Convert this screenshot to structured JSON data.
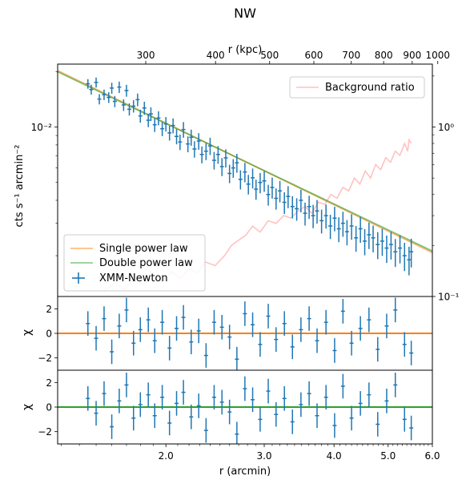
{
  "title": "NW",
  "chart_data": [
    {
      "type": "scatter",
      "panel": "profile",
      "ylabel": "cts s⁻¹ arcmin⁻²",
      "top_xlabel": "r (kpc)",
      "top_xtick_labels": [
        "300",
        "400",
        "500",
        "600",
        "700",
        "800",
        "900",
        "1000"
      ],
      "top_xticks_kpc": [
        300,
        400,
        500,
        600,
        700,
        800,
        900,
        1000
      ],
      "xlim_arcmin": [
        1.28,
        6.0
      ],
      "ylim_log": [
        0.0012,
        0.022
      ],
      "yscale": "log",
      "left_ytick_labels": [
        "10⁻²"
      ],
      "left_yticks": [
        0.01
      ],
      "right_axis": {
        "scale": "log",
        "ylim": [
          0.1,
          2.35
        ],
        "tick_labels": [
          "10⁰",
          "10⁻¹"
        ],
        "ticks": [
          1.0,
          0.1
        ]
      },
      "legend_left": [
        "Single power law",
        "Double power law",
        "XMM-Newton"
      ],
      "legend_left_location": "lower-left",
      "legend_right": [
        "Background ratio"
      ],
      "legend_right_location": "upper-right",
      "colors": {
        "data": "#1f77b4",
        "single": "#ff7f0e",
        "double": "#2ca02c",
        "background": "#ff9999"
      },
      "model_single": {
        "x": [
          1.28,
          6.0
        ],
        "y": [
          0.0203,
          0.00208
        ]
      },
      "model_double": {
        "x": [
          1.28,
          6.0
        ],
        "y": [
          0.02,
          0.00212
        ]
      },
      "xmm_newton": {
        "x": [
          1.45,
          1.47,
          1.5,
          1.52,
          1.55,
          1.58,
          1.6,
          1.62,
          1.65,
          1.68,
          1.7,
          1.72,
          1.75,
          1.78,
          1.8,
          1.83,
          1.86,
          1.88,
          1.91,
          1.94,
          1.97,
          2.0,
          2.03,
          2.06,
          2.09,
          2.12,
          2.15,
          2.19,
          2.22,
          2.25,
          2.29,
          2.32,
          2.36,
          2.4,
          2.44,
          2.48,
          2.52,
          2.56,
          2.6,
          2.64,
          2.68,
          2.72,
          2.77,
          2.81,
          2.86,
          2.9,
          2.95,
          3.0,
          3.05,
          3.1,
          3.15,
          3.2,
          3.26,
          3.31,
          3.37,
          3.43,
          3.49,
          3.55,
          3.61,
          3.67,
          3.73,
          3.8,
          3.87,
          3.94,
          4.01,
          4.08,
          4.15,
          4.22,
          4.3,
          4.38,
          4.46,
          4.54,
          4.62,
          4.7,
          4.79,
          4.88,
          4.97,
          5.06,
          5.15,
          5.25,
          5.35,
          5.45,
          5.5
        ],
        "y": [
          0.0172,
          0.016,
          0.0175,
          0.0142,
          0.015,
          0.0145,
          0.0163,
          0.0138,
          0.0165,
          0.0132,
          0.0158,
          0.0125,
          0.013,
          0.0141,
          0.0115,
          0.0127,
          0.0109,
          0.0118,
          0.0103,
          0.0112,
          0.0098,
          0.0104,
          0.0093,
          0.0102,
          0.0089,
          0.0083,
          0.0097,
          0.0081,
          0.0088,
          0.0076,
          0.0084,
          0.0071,
          0.0074,
          0.0079,
          0.0066,
          0.0071,
          0.0061,
          0.0068,
          0.0056,
          0.006,
          0.0064,
          0.0052,
          0.0057,
          0.0049,
          0.0053,
          0.0046,
          0.005,
          0.0051,
          0.0043,
          0.0047,
          0.0041,
          0.0045,
          0.0039,
          0.0042,
          0.0037,
          0.0036,
          0.004,
          0.0034,
          0.0037,
          0.0033,
          0.0035,
          0.0031,
          0.0033,
          0.0029,
          0.0032,
          0.0028,
          0.003,
          0.0027,
          0.0029,
          0.0025,
          0.0028,
          0.0024,
          0.0026,
          0.0025,
          0.0023,
          0.0024,
          0.0022,
          0.0023,
          0.0021,
          0.0022,
          0.002,
          0.0019,
          0.0021
        ]
      },
      "background_ratio": {
        "x": [
          1.55,
          1.62,
          1.68,
          1.75,
          1.82,
          1.9,
          1.97,
          2.05,
          2.12,
          2.2,
          2.28,
          2.35,
          2.45,
          2.55,
          2.62,
          2.7,
          2.78,
          2.86,
          2.95,
          3.05,
          3.15,
          3.25,
          3.35,
          3.45,
          3.55,
          3.65,
          3.75,
          3.85,
          3.95,
          4.05,
          4.15,
          4.25,
          4.35,
          4.45,
          4.55,
          4.65,
          4.75,
          4.85,
          4.95,
          5.05,
          5.15,
          5.25,
          5.35,
          5.42,
          5.45,
          5.5
        ],
        "y": [
          0.108,
          0.12,
          0.11,
          0.125,
          0.118,
          0.13,
          0.122,
          0.14,
          0.128,
          0.145,
          0.138,
          0.16,
          0.152,
          0.175,
          0.2,
          0.215,
          0.23,
          0.26,
          0.24,
          0.28,
          0.27,
          0.3,
          0.29,
          0.32,
          0.34,
          0.31,
          0.36,
          0.35,
          0.4,
          0.38,
          0.44,
          0.42,
          0.5,
          0.46,
          0.55,
          0.5,
          0.6,
          0.56,
          0.66,
          0.62,
          0.72,
          0.68,
          0.8,
          0.72,
          0.84,
          0.8
        ]
      }
    },
    {
      "type": "scatter",
      "panel": "residuals-single",
      "ylabel": "χ",
      "ylim": [
        -3,
        3
      ],
      "ytick_labels": [
        "2",
        "0",
        "−2"
      ],
      "yticks": [
        2,
        0,
        -2
      ],
      "zero_line_color": "#ff7f0e",
      "x": [
        1.45,
        1.5,
        1.55,
        1.6,
        1.65,
        1.7,
        1.75,
        1.8,
        1.86,
        1.91,
        1.97,
        2.03,
        2.09,
        2.15,
        2.22,
        2.29,
        2.36,
        2.44,
        2.52,
        2.6,
        2.68,
        2.77,
        2.86,
        2.95,
        3.05,
        3.15,
        3.26,
        3.37,
        3.49,
        3.61,
        3.73,
        3.87,
        4.01,
        4.15,
        4.3,
        4.46,
        4.62,
        4.79,
        4.97,
        5.15,
        5.35,
        5.5
      ],
      "values": [
        0.8,
        -0.4,
        1.2,
        -1.5,
        0.6,
        1.9,
        -0.8,
        0.3,
        1.1,
        -0.6,
        0.9,
        -1.2,
        0.4,
        1.3,
        -0.7,
        0.2,
        -1.8,
        0.9,
        0.5,
        -0.3,
        -2.1,
        1.6,
        0.7,
        -0.9,
        1.4,
        -0.5,
        0.8,
        -1.1,
        0.3,
        1.2,
        -0.6,
        0.9,
        -1.4,
        1.8,
        -0.8,
        0.4,
        1.1,
        -1.3,
        0.6,
        1.9,
        -0.9,
        -1.6
      ]
    },
    {
      "type": "scatter",
      "panel": "residuals-double",
      "ylabel": "χ",
      "xlabel": "r (arcmin)",
      "ylim": [
        -3,
        3
      ],
      "ytick_labels": [
        "2",
        "0",
        "−2"
      ],
      "yticks": [
        2,
        0,
        -2
      ],
      "xtick_labels": [
        "2.0",
        "3.0",
        "4.0",
        "5.0",
        "6.0"
      ],
      "xticks": [
        2.0,
        3.0,
        4.0,
        5.0,
        6.0
      ],
      "zero_line_color": "#2ca02c",
      "x": [
        1.45,
        1.5,
        1.55,
        1.6,
        1.65,
        1.7,
        1.75,
        1.8,
        1.86,
        1.91,
        1.97,
        2.03,
        2.09,
        2.15,
        2.22,
        2.29,
        2.36,
        2.44,
        2.52,
        2.6,
        2.68,
        2.77,
        2.86,
        2.95,
        3.05,
        3.15,
        3.26,
        3.37,
        3.49,
        3.61,
        3.73,
        3.87,
        4.01,
        4.15,
        4.3,
        4.46,
        4.62,
        4.79,
        4.97,
        5.15,
        5.35,
        5.5
      ],
      "values": [
        0.7,
        -0.5,
        1.1,
        -1.6,
        0.5,
        1.8,
        -0.9,
        0.2,
        1.0,
        -0.7,
        0.8,
        -1.3,
        0.3,
        1.2,
        -0.8,
        0.1,
        -1.9,
        0.8,
        0.4,
        -0.4,
        -2.2,
        1.5,
        0.6,
        -1.0,
        1.3,
        -0.6,
        0.7,
        -1.2,
        0.2,
        1.1,
        -0.7,
        0.8,
        -1.5,
        1.7,
        -0.9,
        0.3,
        1.0,
        -1.4,
        0.5,
        1.8,
        -1.0,
        -1.7
      ]
    }
  ]
}
